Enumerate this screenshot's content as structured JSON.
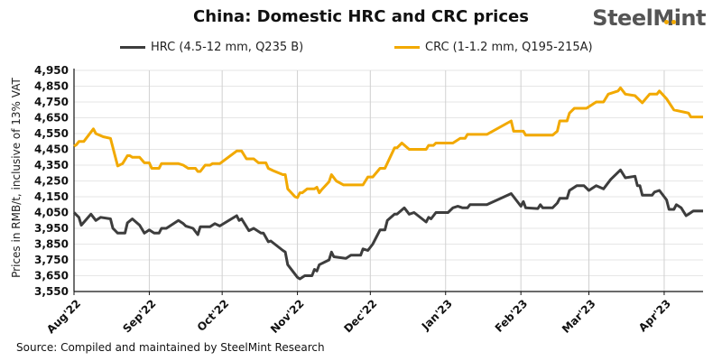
{
  "logo": {
    "text": "SteelMint",
    "colors": {
      "text": "#555555",
      "dots": "#f2a900"
    }
  },
  "source": "Source:  Compiled and maintained by SteelMint  Research",
  "chart_data": {
    "type": "line",
    "title": "China: Domestic HRC and CRC prices",
    "xlabel": "",
    "ylabel": "Prices in RMB/t, inclusive of 13% VAT",
    "ylim": [
      3550,
      4950
    ],
    "yticks": [
      3550,
      3650,
      3750,
      3850,
      3950,
      4050,
      4150,
      4250,
      4350,
      4450,
      4550,
      4650,
      4750,
      4850,
      4950
    ],
    "xlim": [
      "2022-08-01",
      "2023-04-17"
    ],
    "xticks": [
      {
        "date": "2022-08-01",
        "label": "Aug'22"
      },
      {
        "date": "2022-09-01",
        "label": "Sep'22"
      },
      {
        "date": "2022-10-01",
        "label": "Oct'22"
      },
      {
        "date": "2022-11-01",
        "label": "Nov'22"
      },
      {
        "date": "2022-12-01",
        "label": "Dec'22"
      },
      {
        "date": "2023-01-01",
        "label": "Jan'23"
      },
      {
        "date": "2023-02-01",
        "label": "Feb'23"
      },
      {
        "date": "2023-03-01",
        "label": "Mar'23"
      },
      {
        "date": "2023-04-01",
        "label": "Apr'23"
      }
    ],
    "grid": {
      "horizontal": true,
      "vertical_at_month_ticks": true
    },
    "legend": "top",
    "series": [
      {
        "name": "HRC (4.5-12 mm, Q235 B)",
        "color": "#3d3d3d",
        "points": [
          [
            "2022-08-01",
            4050
          ],
          [
            "2022-08-03",
            4020
          ],
          [
            "2022-08-04",
            3970
          ],
          [
            "2022-08-08",
            4040
          ],
          [
            "2022-08-10",
            4000
          ],
          [
            "2022-08-12",
            4020
          ],
          [
            "2022-08-16",
            4010
          ],
          [
            "2022-08-17",
            3950
          ],
          [
            "2022-08-19",
            3920
          ],
          [
            "2022-08-22",
            3920
          ],
          [
            "2022-08-23",
            3985
          ],
          [
            "2022-08-25",
            4010
          ],
          [
            "2022-08-28",
            3970
          ],
          [
            "2022-08-30",
            3920
          ],
          [
            "2022-09-01",
            3940
          ],
          [
            "2022-09-03",
            3920
          ],
          [
            "2022-09-05",
            3920
          ],
          [
            "2022-09-06",
            3950
          ],
          [
            "2022-09-08",
            3950
          ],
          [
            "2022-09-13",
            4000
          ],
          [
            "2022-09-15",
            3980
          ],
          [
            "2022-09-16",
            3965
          ],
          [
            "2022-09-19",
            3950
          ],
          [
            "2022-09-21",
            3910
          ],
          [
            "2022-09-22",
            3960
          ],
          [
            "2022-09-26",
            3960
          ],
          [
            "2022-09-28",
            3980
          ],
          [
            "2022-09-30",
            3965
          ],
          [
            "2022-10-07",
            4030
          ],
          [
            "2022-10-08",
            4000
          ],
          [
            "2022-10-09",
            4010
          ],
          [
            "2022-10-12",
            3935
          ],
          [
            "2022-10-14",
            3950
          ],
          [
            "2022-10-17",
            3920
          ],
          [
            "2022-10-18",
            3920
          ],
          [
            "2022-10-20",
            3865
          ],
          [
            "2022-10-21",
            3870
          ],
          [
            "2022-10-26",
            3810
          ],
          [
            "2022-10-27",
            3800
          ],
          [
            "2022-10-28",
            3720
          ],
          [
            "2022-11-01",
            3640
          ],
          [
            "2022-11-02",
            3630
          ],
          [
            "2022-11-04",
            3650
          ],
          [
            "2022-11-07",
            3650
          ],
          [
            "2022-11-08",
            3690
          ],
          [
            "2022-11-09",
            3680
          ],
          [
            "2022-11-10",
            3720
          ],
          [
            "2022-11-14",
            3750
          ],
          [
            "2022-11-15",
            3800
          ],
          [
            "2022-11-16",
            3770
          ],
          [
            "2022-11-21",
            3760
          ],
          [
            "2022-11-23",
            3780
          ],
          [
            "2022-11-27",
            3780
          ],
          [
            "2022-11-28",
            3820
          ],
          [
            "2022-11-30",
            3810
          ],
          [
            "2022-12-02",
            3850
          ],
          [
            "2022-12-05",
            3940
          ],
          [
            "2022-12-07",
            3940
          ],
          [
            "2022-12-08",
            4000
          ],
          [
            "2022-12-11",
            4040
          ],
          [
            "2022-12-12",
            4040
          ],
          [
            "2022-12-15",
            4080
          ],
          [
            "2022-12-17",
            4040
          ],
          [
            "2022-12-19",
            4050
          ],
          [
            "2022-12-24",
            3990
          ],
          [
            "2022-12-25",
            4020
          ],
          [
            "2022-12-26",
            4010
          ],
          [
            "2022-12-28",
            4050
          ],
          [
            "2023-01-02",
            4050
          ],
          [
            "2023-01-04",
            4080
          ],
          [
            "2023-01-06",
            4090
          ],
          [
            "2023-01-08",
            4080
          ],
          [
            "2023-01-10",
            4080
          ],
          [
            "2023-01-11",
            4100
          ],
          [
            "2023-01-14",
            4100
          ],
          [
            "2023-01-18",
            4100
          ],
          [
            "2023-01-28",
            4170
          ],
          [
            "2023-02-01",
            4090
          ],
          [
            "2023-02-02",
            4120
          ],
          [
            "2023-02-03",
            4080
          ],
          [
            "2023-02-08",
            4075
          ],
          [
            "2023-02-09",
            4100
          ],
          [
            "2023-02-10",
            4080
          ],
          [
            "2023-02-14",
            4080
          ],
          [
            "2023-02-16",
            4110
          ],
          [
            "2023-02-17",
            4140
          ],
          [
            "2023-02-20",
            4140
          ],
          [
            "2023-02-21",
            4190
          ],
          [
            "2023-02-24",
            4220
          ],
          [
            "2023-02-27",
            4220
          ],
          [
            "2023-03-01",
            4190
          ],
          [
            "2023-03-04",
            4220
          ],
          [
            "2023-03-07",
            4200
          ],
          [
            "2023-03-10",
            4260
          ],
          [
            "2023-03-14",
            4320
          ],
          [
            "2023-03-16",
            4270
          ],
          [
            "2023-03-20",
            4280
          ],
          [
            "2023-03-21",
            4220
          ],
          [
            "2023-03-22",
            4220
          ],
          [
            "2023-03-23",
            4160
          ],
          [
            "2023-03-27",
            4160
          ],
          [
            "2023-03-28",
            4180
          ],
          [
            "2023-03-30",
            4190
          ],
          [
            "2023-04-02",
            4130
          ],
          [
            "2023-04-03",
            4070
          ],
          [
            "2023-04-05",
            4070
          ],
          [
            "2023-04-06",
            4100
          ],
          [
            "2023-04-08",
            4080
          ],
          [
            "2023-04-10",
            4030
          ],
          [
            "2023-04-11",
            4040
          ],
          [
            "2023-04-13",
            4060
          ],
          [
            "2023-04-17",
            4060
          ]
        ]
      },
      {
        "name": "CRC (1-1.2 mm, Q195-215A)",
        "color": "#f2a900",
        "points": [
          [
            "2022-08-01",
            4470
          ],
          [
            "2022-08-02",
            4480
          ],
          [
            "2022-08-03",
            4500
          ],
          [
            "2022-08-05",
            4500
          ],
          [
            "2022-08-09",
            4580
          ],
          [
            "2022-08-10",
            4550
          ],
          [
            "2022-08-13",
            4530
          ],
          [
            "2022-08-16",
            4520
          ],
          [
            "2022-08-19",
            4345
          ],
          [
            "2022-08-21",
            4360
          ],
          [
            "2022-08-23",
            4410
          ],
          [
            "2022-08-24",
            4410
          ],
          [
            "2022-08-25",
            4400
          ],
          [
            "2022-08-28",
            4400
          ],
          [
            "2022-08-30",
            4365
          ],
          [
            "2022-09-01",
            4365
          ],
          [
            "2022-09-02",
            4330
          ],
          [
            "2022-09-05",
            4330
          ],
          [
            "2022-09-06",
            4360
          ],
          [
            "2022-09-13",
            4360
          ],
          [
            "2022-09-15",
            4350
          ],
          [
            "2022-09-17",
            4330
          ],
          [
            "2022-09-20",
            4330
          ],
          [
            "2022-09-21",
            4310
          ],
          [
            "2022-09-22",
            4310
          ],
          [
            "2022-09-24",
            4350
          ],
          [
            "2022-09-26",
            4350
          ],
          [
            "2022-09-27",
            4360
          ],
          [
            "2022-09-30",
            4360
          ],
          [
            "2022-10-07",
            4440
          ],
          [
            "2022-10-09",
            4440
          ],
          [
            "2022-10-11",
            4390
          ],
          [
            "2022-10-14",
            4390
          ],
          [
            "2022-10-16",
            4365
          ],
          [
            "2022-10-19",
            4365
          ],
          [
            "2022-10-20",
            4330
          ],
          [
            "2022-10-22",
            4315
          ],
          [
            "2022-10-26",
            4290
          ],
          [
            "2022-10-27",
            4290
          ],
          [
            "2022-10-28",
            4200
          ],
          [
            "2022-10-31",
            4150
          ],
          [
            "2022-11-01",
            4145
          ],
          [
            "2022-11-02",
            4175
          ],
          [
            "2022-11-03",
            4175
          ],
          [
            "2022-11-05",
            4200
          ],
          [
            "2022-11-08",
            4200
          ],
          [
            "2022-11-09",
            4210
          ],
          [
            "2022-11-10",
            4175
          ],
          [
            "2022-11-11",
            4195
          ],
          [
            "2022-11-14",
            4245
          ],
          [
            "2022-11-15",
            4290
          ],
          [
            "2022-11-17",
            4250
          ],
          [
            "2022-11-20",
            4225
          ],
          [
            "2022-11-28",
            4225
          ],
          [
            "2022-11-30",
            4275
          ],
          [
            "2022-12-02",
            4275
          ],
          [
            "2022-12-05",
            4330
          ],
          [
            "2022-12-07",
            4330
          ],
          [
            "2022-12-11",
            4460
          ],
          [
            "2022-12-12",
            4460
          ],
          [
            "2022-12-14",
            4490
          ],
          [
            "2022-12-17",
            4450
          ],
          [
            "2022-12-24",
            4450
          ],
          [
            "2022-12-25",
            4475
          ],
          [
            "2022-12-27",
            4475
          ],
          [
            "2022-12-28",
            4490
          ],
          [
            "2023-01-04",
            4490
          ],
          [
            "2023-01-07",
            4520
          ],
          [
            "2023-01-09",
            4520
          ],
          [
            "2023-01-10",
            4545
          ],
          [
            "2023-01-18",
            4545
          ],
          [
            "2023-01-28",
            4630
          ],
          [
            "2023-01-29",
            4565
          ],
          [
            "2023-02-02",
            4565
          ],
          [
            "2023-02-03",
            4540
          ],
          [
            "2023-02-14",
            4540
          ],
          [
            "2023-02-16",
            4565
          ],
          [
            "2023-02-17",
            4630
          ],
          [
            "2023-02-20",
            4630
          ],
          [
            "2023-02-21",
            4680
          ],
          [
            "2023-02-23",
            4710
          ],
          [
            "2023-02-28",
            4710
          ],
          [
            "2023-03-04",
            4750
          ],
          [
            "2023-03-07",
            4750
          ],
          [
            "2023-03-09",
            4800
          ],
          [
            "2023-03-13",
            4820
          ],
          [
            "2023-03-14",
            4840
          ],
          [
            "2023-03-16",
            4800
          ],
          [
            "2023-03-20",
            4790
          ],
          [
            "2023-03-23",
            4745
          ],
          [
            "2023-03-26",
            4800
          ],
          [
            "2023-03-29",
            4800
          ],
          [
            "2023-03-30",
            4820
          ],
          [
            "2023-04-02",
            4770
          ],
          [
            "2023-04-05",
            4700
          ],
          [
            "2023-04-11",
            4680
          ],
          [
            "2023-04-12",
            4655
          ],
          [
            "2023-04-17",
            4655
          ]
        ]
      }
    ]
  }
}
